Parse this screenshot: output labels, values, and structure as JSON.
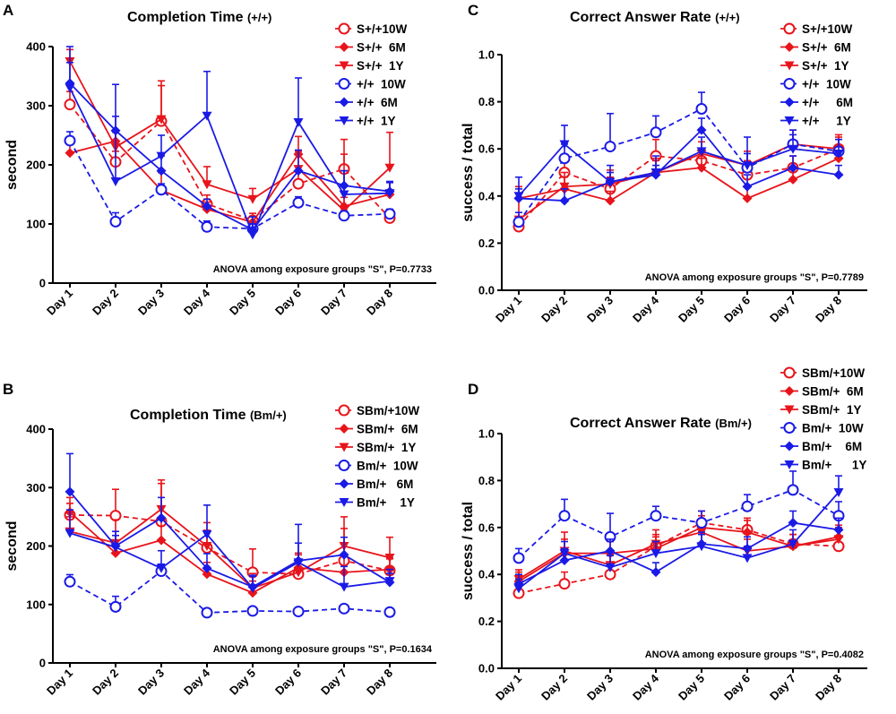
{
  "figure": {
    "name": "memory-test-figure"
  },
  "colors": {
    "red": "#e8141b",
    "blue": "#1a1ae6"
  },
  "chart_data": [
    {
      "panel": "A",
      "type": "line",
      "title": "Completion Time (+/+)",
      "title_main": "Completion Time",
      "title_sub": "(+/+)",
      "ylabel": "second",
      "ylim": [
        0,
        400
      ],
      "yticks": [
        "0",
        "100",
        "200",
        "300",
        "400"
      ],
      "ytick_values": [
        0,
        100,
        200,
        300,
        400
      ],
      "categories": [
        "Day 1",
        "Day 2",
        "Day 3",
        "Day 4",
        "Day 5",
        "Day 6",
        "Day 7",
        "Day 8"
      ],
      "annotation": "ANOVA among exposure groups \"S\", P=0.7733",
      "series": [
        {
          "name": "S+/+10W",
          "color": "#e8141b",
          "dashed": true,
          "marker": "circle-open",
          "values": [
            302,
            205,
            274,
            134,
            106,
            168,
            193,
            110
          ],
          "errors": [
            22,
            18,
            60,
            15,
            12,
            20,
            25,
            10
          ]
        },
        {
          "name": "S+/+  6M",
          "color": "#e8141b",
          "dashed": false,
          "marker": "diamond",
          "values": [
            220,
            240,
            157,
            125,
            103,
            218,
            130,
            150
          ],
          "errors": [
            25,
            15,
            30,
            12,
            10,
            30,
            15,
            20
          ]
        },
        {
          "name": "S+/+  1Y",
          "color": "#e8141b",
          "dashed": false,
          "marker": "triangle-down",
          "values": [
            375,
            230,
            277,
            167,
            142,
            193,
            123,
            195
          ],
          "errors": [
            20,
            25,
            65,
            30,
            18,
            30,
            120,
            60
          ]
        },
        {
          "name": "+/+  10W",
          "color": "#1a1ae6",
          "dashed": true,
          "marker": "circle-open",
          "values": [
            241,
            104,
            158,
            95,
            92,
            136,
            114,
            117
          ],
          "errors": [
            15,
            15,
            10,
            10,
            8,
            10,
            8,
            8
          ]
        },
        {
          "name": "+/+  6M",
          "color": "#1a1ae6",
          "dashed": false,
          "marker": "diamond",
          "values": [
            338,
            258,
            190,
            130,
            90,
            190,
            165,
            155
          ],
          "errors": [
            35,
            78,
            25,
            12,
            10,
            35,
            25,
            15
          ]
        },
        {
          "name": "+/+  1Y",
          "color": "#1a1ae6",
          "dashed": false,
          "marker": "triangle-down",
          "values": [
            330,
            172,
            215,
            283,
            82,
            272,
            150,
            152
          ],
          "errors": [
            70,
            110,
            35,
            75,
            30,
            75,
            40,
            20
          ]
        }
      ]
    },
    {
      "panel": "B",
      "type": "line",
      "title": "Completion Time (Bm/+)",
      "title_main": "Completion Time",
      "title_sub": "(Bm/+)",
      "ylabel": "second",
      "ylim": [
        0,
        400
      ],
      "yticks": [
        "0",
        "100",
        "200",
        "300",
        "400"
      ],
      "ytick_values": [
        0,
        100,
        200,
        300,
        400
      ],
      "categories": [
        "Day 1",
        "Day 2",
        "Day 3",
        "Day 4",
        "Day 5",
        "Day 6",
        "Day 7",
        "Day 8"
      ],
      "annotation": "ANOVA among exposure groups \"S\", P=0.1634",
      "series": [
        {
          "name": "SBm/+10W",
          "color": "#e8141b",
          "dashed": true,
          "marker": "circle-open",
          "values": [
            253,
            252,
            242,
            197,
            155,
            152,
            175,
            158
          ],
          "errors": [
            20,
            45,
            65,
            30,
            40,
            25,
            55,
            20
          ]
        },
        {
          "name": "SBm/+  6M",
          "color": "#e8141b",
          "dashed": false,
          "marker": "diamond",
          "values": [
            258,
            188,
            210,
            152,
            120,
            163,
            155,
            160
          ],
          "errors": [
            25,
            20,
            35,
            20,
            20,
            25,
            30,
            20
          ]
        },
        {
          "name": "SBm/+  1Y",
          "color": "#e8141b",
          "dashed": false,
          "marker": "triangle-down",
          "values": [
            225,
            205,
            263,
            200,
            128,
            155,
            200,
            180
          ],
          "errors": [
            25,
            40,
            50,
            40,
            25,
            30,
            50,
            35
          ]
        },
        {
          "name": "Bm/+  10W",
          "color": "#1a1ae6",
          "dashed": true,
          "marker": "circle-open",
          "values": [
            139,
            96,
            157,
            86,
            89,
            88,
            93,
            87
          ],
          "errors": [
            12,
            18,
            12,
            5,
            5,
            5,
            5,
            5
          ]
        },
        {
          "name": "Bm/+   6M",
          "color": "#1a1ae6",
          "dashed": false,
          "marker": "diamond",
          "values": [
            293,
            200,
            248,
            162,
            130,
            175,
            185,
            138
          ],
          "errors": [
            65,
            25,
            35,
            25,
            20,
            30,
            30,
            15
          ]
        },
        {
          "name": "Bm/+    1Y",
          "color": "#1a1ae6",
          "dashed": false,
          "marker": "triangle-down",
          "values": [
            222,
            198,
            162,
            220,
            128,
            172,
            130,
            140
          ],
          "errors": [
            40,
            20,
            30,
            50,
            20,
            65,
            35,
            20
          ]
        }
      ]
    },
    {
      "panel": "C",
      "type": "line",
      "title": "Correct Answer Rate (+/+)",
      "title_main": "Correct Answer Rate",
      "title_sub": "(+/+)",
      "ylabel": "success / total",
      "ylim": [
        0,
        1
      ],
      "yticks": [
        "0.0",
        "0.2",
        "0.4",
        "0.6",
        "0.8",
        "1.0"
      ],
      "ytick_values": [
        0,
        0.2,
        0.4,
        0.6,
        0.8,
        1.0
      ],
      "categories": [
        "Day 1",
        "Day 2",
        "Day 3",
        "Day 4",
        "Day 5",
        "Day 6",
        "Day 7",
        "Day 8"
      ],
      "annotation": "ANOVA among exposure groups \"S\", P=0.7789",
      "series": [
        {
          "name": "S+/+10W",
          "color": "#e8141b",
          "dashed": true,
          "marker": "circle-open",
          "values": [
            0.27,
            0.5,
            0.43,
            0.57,
            0.55,
            0.49,
            0.52,
            0.6
          ],
          "errors": [
            0.04,
            0.06,
            0.05,
            0.07,
            0.05,
            0.06,
            0.05,
            0.05
          ]
        },
        {
          "name": "S+/+  6M",
          "color": "#e8141b",
          "dashed": false,
          "marker": "diamond",
          "values": [
            0.39,
            0.43,
            0.38,
            0.5,
            0.52,
            0.39,
            0.47,
            0.56
          ],
          "errors": [
            0.05,
            0.05,
            0.04,
            0.05,
            0.04,
            0.05,
            0.05,
            0.05
          ]
        },
        {
          "name": "S+/+  1Y",
          "color": "#e8141b",
          "dashed": false,
          "marker": "triangle-down",
          "values": [
            0.3,
            0.44,
            0.45,
            0.5,
            0.58,
            0.53,
            0.62,
            0.6
          ],
          "errors": [
            0.14,
            0.06,
            0.06,
            0.06,
            0.05,
            0.06,
            0.06,
            0.06
          ]
        },
        {
          "name": "+/+  10W",
          "color": "#1a1ae6",
          "dashed": true,
          "marker": "circle-open",
          "values": [
            0.29,
            0.56,
            0.61,
            0.67,
            0.77,
            0.52,
            0.62,
            0.59
          ],
          "errors": [
            0.04,
            0.06,
            0.14,
            0.07,
            0.07,
            0.06,
            0.06,
            0.05
          ]
        },
        {
          "name": "+/+     6M",
          "color": "#1a1ae6",
          "dashed": false,
          "marker": "diamond",
          "values": [
            0.39,
            0.38,
            0.46,
            0.49,
            0.68,
            0.44,
            0.52,
            0.49
          ],
          "errors": [
            0.04,
            0.05,
            0.04,
            0.04,
            0.05,
            0.05,
            0.05,
            0.04
          ]
        },
        {
          "name": "+/+     1Y",
          "color": "#1a1ae6",
          "dashed": false,
          "marker": "triangle-down",
          "values": [
            0.4,
            0.62,
            0.46,
            0.5,
            0.59,
            0.53,
            0.6,
            0.58
          ],
          "errors": [
            0.08,
            0.08,
            0.07,
            0.07,
            0.06,
            0.12,
            0.06,
            0.06
          ]
        }
      ]
    },
    {
      "panel": "D",
      "type": "line",
      "title": "Correct Answer Rate (Bm/+)",
      "title_main": "Correct Answer Rate",
      "title_sub": "(Bm/+)",
      "ylabel": "success / total",
      "ylim": [
        0,
        1
      ],
      "yticks": [
        "0.0",
        "0.2",
        "0.4",
        "0.6",
        "0.8",
        "1.0"
      ],
      "ytick_values": [
        0,
        0.2,
        0.4,
        0.6,
        0.8,
        1.0
      ],
      "categories": [
        "Day 1",
        "Day 2",
        "Day 3",
        "Day 4",
        "Day 5",
        "Day 6",
        "Day 7",
        "Day 8"
      ],
      "annotation": "ANOVA among exposure groups \"S\", P=0.4082",
      "series": [
        {
          "name": "SBm/+10W",
          "color": "#e8141b",
          "dashed": true,
          "marker": "circle-open",
          "values": [
            0.32,
            0.36,
            0.4,
            0.52,
            0.62,
            0.59,
            0.53,
            0.52
          ],
          "errors": [
            0.03,
            0.05,
            0.04,
            0.05,
            0.05,
            0.05,
            0.04,
            0.04
          ]
        },
        {
          "name": "SBm/+  6M",
          "color": "#e8141b",
          "dashed": false,
          "marker": "diamond",
          "values": [
            0.37,
            0.49,
            0.49,
            0.51,
            0.6,
            0.58,
            0.52,
            0.56
          ],
          "errors": [
            0.04,
            0.06,
            0.05,
            0.05,
            0.05,
            0.05,
            0.05,
            0.05
          ]
        },
        {
          "name": "SBm/+  1Y",
          "color": "#e8141b",
          "dashed": false,
          "marker": "triangle-down",
          "values": [
            0.38,
            0.5,
            0.44,
            0.53,
            0.58,
            0.5,
            0.52,
            0.55
          ],
          "errors": [
            0.04,
            0.08,
            0.05,
            0.06,
            0.05,
            0.05,
            0.05,
            0.05
          ]
        },
        {
          "name": "Bm/+  10W",
          "color": "#1a1ae6",
          "dashed": true,
          "marker": "circle-open",
          "values": [
            0.47,
            0.65,
            0.56,
            0.65,
            0.62,
            0.69,
            0.76,
            0.65
          ],
          "errors": [
            0.04,
            0.07,
            0.1,
            0.04,
            0.05,
            0.05,
            0.08,
            0.06
          ]
        },
        {
          "name": "Bm/+    6M",
          "color": "#1a1ae6",
          "dashed": false,
          "marker": "diamond",
          "values": [
            0.36,
            0.46,
            0.5,
            0.41,
            0.53,
            0.51,
            0.62,
            0.59
          ],
          "errors": [
            0.04,
            0.05,
            0.05,
            0.04,
            0.05,
            0.05,
            0.05,
            0.05
          ]
        },
        {
          "name": "Bm/+      1Y",
          "color": "#1a1ae6",
          "dashed": false,
          "marker": "triangle-down",
          "values": [
            0.34,
            0.49,
            0.43,
            0.49,
            0.52,
            0.47,
            0.53,
            0.75
          ],
          "errors": [
            0.04,
            0.05,
            0.05,
            0.05,
            0.05,
            0.05,
            0.06,
            0.07
          ]
        }
      ]
    }
  ]
}
